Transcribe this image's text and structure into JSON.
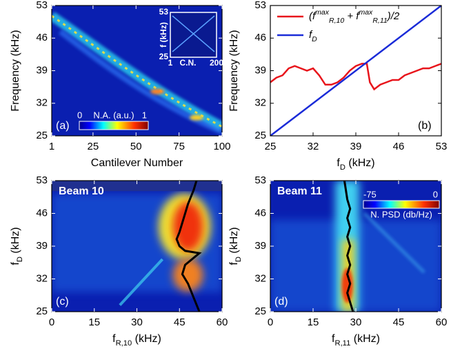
{
  "chart_data": [
    {
      "type": "heatmap",
      "xlabel": "Cantilever Number",
      "ylabel": "Frequency (kHz)",
      "panel_label": "(a)",
      "xlim": [
        1,
        100
      ],
      "xticks": [
        1,
        25,
        50,
        75,
        100
      ],
      "ylim": [
        25,
        53
      ],
      "yticks": [
        25,
        32,
        39,
        46,
        53
      ],
      "colorbar": {
        "label": "N.A. (a.u.)",
        "ticks": [
          0,
          1
        ]
      },
      "inset": {
        "xlabel": "C.N.",
        "ylabel": "f (kHz)",
        "xlim": [
          1,
          200
        ],
        "xticks": [
          1,
          200
        ],
        "ylim": [
          25,
          53
        ],
        "yticks": [
          25,
          53
        ]
      }
    },
    {
      "type": "line",
      "xlabel": "fD (kHz)",
      "ylabel": "Frequency (kHz)",
      "panel_label": "(b)",
      "xlim": [
        25,
        53
      ],
      "xticks": [
        25,
        32,
        39,
        46,
        53
      ],
      "ylim": [
        25,
        53
      ],
      "yticks": [
        25,
        32,
        39,
        46,
        53
      ],
      "legend": "upper left",
      "series": [
        {
          "name": "(fmaxR,10 + fmaxR,11)/2",
          "color": "#e8141b",
          "x": [
            25,
            26,
            27,
            28,
            29,
            30,
            31,
            32,
            33,
            34,
            35,
            36,
            37,
            38,
            39,
            40,
            40.8,
            41.3,
            42,
            43,
            44,
            45,
            46,
            47,
            48,
            49,
            50,
            51,
            52,
            53
          ],
          "y": [
            36.5,
            37.5,
            38,
            39.5,
            40,
            39.5,
            39,
            39.5,
            38,
            36,
            36,
            36.5,
            37.5,
            39,
            40,
            40.5,
            40.5,
            36.5,
            35,
            36,
            36.5,
            37,
            37,
            38,
            38.5,
            39,
            39.5,
            39.5,
            40,
            40.5
          ]
        },
        {
          "name": "fD",
          "color": "#1a2bd8",
          "x": [
            25,
            53
          ],
          "y": [
            25,
            53
          ]
        }
      ]
    },
    {
      "type": "heatmap",
      "title": "Beam 10",
      "xlabel": "fR,10 (kHz)",
      "ylabel": "fD (kHz)",
      "panel_label": "(c)",
      "xlim": [
        0,
        60
      ],
      "xticks": [
        0,
        15,
        30,
        45,
        60
      ],
      "ylim": [
        25,
        53
      ],
      "yticks": [
        25,
        32,
        39,
        46,
        53
      ],
      "series": [
        {
          "color": "#000000",
          "x": [
            52,
            51,
            50,
            49,
            48,
            47,
            46,
            47,
            52,
            47,
            45,
            44,
            45,
            46,
            47,
            48,
            49,
            50,
            51
          ],
          "y": [
            25,
            26.5,
            28,
            29.5,
            31,
            32,
            33,
            35,
            37.5,
            38,
            39,
            40.5,
            42,
            44,
            46,
            48,
            49.5,
            51,
            53
          ]
        }
      ]
    },
    {
      "type": "heatmap",
      "title": "Beam 11",
      "xlabel": "fR,11 (kHz)",
      "ylabel": "fD (kHz)",
      "panel_label": "(d)",
      "xlim": [
        0,
        60
      ],
      "xticks": [
        0,
        15,
        30,
        45,
        60
      ],
      "ylim": [
        25,
        53
      ],
      "yticks": [
        25,
        32,
        39,
        46,
        53
      ],
      "colorbar": {
        "label": "N. PSD (db/Hz)",
        "ticks": [
          -75,
          0
        ]
      },
      "series": [
        {
          "color": "#000000",
          "x": [
            29,
            28,
            27,
            28,
            27,
            28,
            27,
            28,
            27,
            28,
            27,
            28,
            27,
            26
          ],
          "y": [
            25,
            27,
            29,
            31,
            33,
            35,
            37,
            39,
            41,
            43,
            45,
            47,
            49,
            53
          ]
        }
      ]
    }
  ]
}
